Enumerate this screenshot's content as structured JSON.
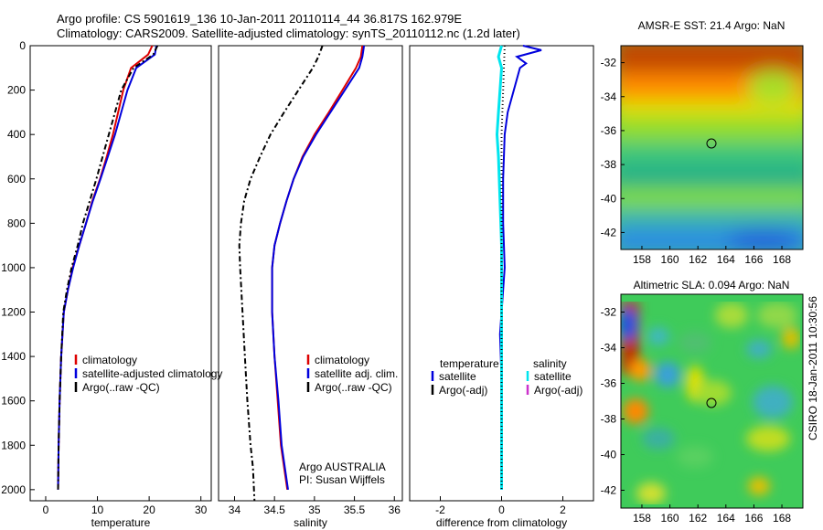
{
  "header": {
    "line1": "Argo profile: CS 5901619_136 10-Jan-2011 20110114_44 36.817S 162.979E",
    "line2": "Climatology: CARS2009. Satellite-adjusted climatology: synTS_20110112.nc (1.2d later)"
  },
  "colors": {
    "red": "#dd0000",
    "blue": "#0000dd",
    "black": "#000000",
    "cyan": "#00e5ee",
    "magenta": "#cc33cc"
  },
  "side_label": "CSIRO 18-Jan-2011 10:30:56",
  "chart_data": [
    {
      "type": "line",
      "xlabel": "temperature",
      "ylabel": "",
      "xlim": [
        -3,
        32
      ],
      "ylim": [
        2050,
        0
      ],
      "xticks": [
        0,
        10,
        20,
        30
      ],
      "yticks": [
        0,
        200,
        400,
        600,
        800,
        1000,
        1200,
        1400,
        1600,
        1800,
        2000
      ],
      "legend": [
        "climatology",
        "satellite-adjusted climatology",
        "Argo(..raw -QC)"
      ],
      "legend_position": "lower-right",
      "series": [
        {
          "name": "climatology",
          "color": "red",
          "dash": "",
          "x": [
            20.6,
            19.8,
            16.5,
            15.0,
            14.0,
            13.0,
            11.8,
            10.5,
            9.0,
            7.8,
            6.5,
            5.2,
            4.3,
            3.5,
            3.0,
            2.7,
            2.5,
            2.4
          ],
          "y": [
            0,
            40,
            100,
            200,
            300,
            400,
            500,
            600,
            700,
            800,
            900,
            1000,
            1100,
            1200,
            1400,
            1600,
            1800,
            2000
          ]
        },
        {
          "name": "satellite-adjusted climatology",
          "color": "blue",
          "dash": "",
          "x": [
            21.4,
            21.1,
            17.5,
            15.8,
            14.6,
            13.4,
            12.0,
            10.6,
            9.1,
            7.8,
            6.5,
            5.3,
            4.3,
            3.5,
            3.0,
            2.7,
            2.5,
            2.4
          ],
          "y": [
            0,
            40,
            100,
            200,
            300,
            400,
            500,
            600,
            700,
            800,
            900,
            1000,
            1100,
            1200,
            1400,
            1600,
            1800,
            2000
          ]
        },
        {
          "name": "Argo(..raw -QC)",
          "color": "black",
          "dash": "6,3,2,3",
          "x": [
            21.6,
            20.8,
            17.0,
            14.6,
            13.4,
            12.2,
            11.0,
            9.8,
            8.5,
            7.2,
            6.2,
            5.0,
            4.1,
            3.4,
            3.0,
            2.7,
            2.5,
            2.4
          ],
          "y": [
            0,
            40,
            100,
            200,
            300,
            400,
            500,
            600,
            700,
            800,
            900,
            1000,
            1100,
            1200,
            1400,
            1600,
            1800,
            2000
          ]
        }
      ]
    },
    {
      "type": "line",
      "xlabel": "salinity",
      "ylabel": "",
      "xlim": [
        33.8,
        36.1
      ],
      "ylim": [
        2050,
        0
      ],
      "xticks": [
        34,
        34.5,
        35,
        35.5,
        36
      ],
      "legend": [
        "climatology",
        "satellite adj. clim.",
        "Argo(..raw -QC)"
      ],
      "legend_position": "lower-right",
      "annotations": [
        "Argo AUSTRALIA",
        "PI: Susan Wijffels"
      ],
      "series": [
        {
          "name": "climatology",
          "color": "red",
          "dash": "",
          "x": [
            35.6,
            35.58,
            35.52,
            35.35,
            35.18,
            35.0,
            34.85,
            34.74,
            34.65,
            34.57,
            34.5,
            34.47,
            34.47,
            34.5,
            34.54,
            34.58,
            34.62,
            34.66
          ],
          "y": [
            0,
            50,
            100,
            200,
            300,
            400,
            500,
            600,
            700,
            800,
            900,
            1000,
            1200,
            1400,
            1600,
            1800,
            1900,
            2000
          ]
        },
        {
          "name": "satellite adj. clim.",
          "color": "blue",
          "dash": "",
          "x": [
            35.62,
            35.6,
            35.56,
            35.38,
            35.2,
            35.02,
            34.86,
            34.74,
            34.65,
            34.57,
            34.5,
            34.47,
            34.47,
            34.5,
            34.55,
            34.59,
            34.63,
            34.67
          ],
          "y": [
            0,
            50,
            100,
            200,
            300,
            400,
            500,
            600,
            700,
            800,
            900,
            1000,
            1200,
            1400,
            1600,
            1800,
            1900,
            2000
          ]
        },
        {
          "name": "Argo(..raw -QC)",
          "color": "black",
          "dash": "6,3,2,3",
          "x": [
            35.1,
            35.05,
            34.98,
            34.8,
            34.62,
            34.45,
            34.32,
            34.2,
            34.12,
            34.08,
            34.06,
            34.07,
            34.1,
            34.13,
            34.16,
            34.2,
            34.23,
            34.25
          ],
          "y": [
            0,
            50,
            100,
            200,
            300,
            400,
            500,
            600,
            700,
            800,
            900,
            1000,
            1200,
            1400,
            1600,
            1800,
            1900,
            2050
          ]
        }
      ]
    },
    {
      "type": "line",
      "xlabel": "difference from climatology",
      "ylabel": "",
      "xlim": [
        -3.0,
        3.0
      ],
      "ylim": [
        2050,
        0
      ],
      "xticks": [
        -2,
        0,
        2
      ],
      "legend_headers": [
        "temperature",
        "salinity"
      ],
      "legend_left": [
        "satellite",
        "Argo(-adj)"
      ],
      "legend_right": [
        "satellite",
        "Argo(-adj)"
      ],
      "legend_position": "lower",
      "series": [
        {
          "name": "temperature satellite",
          "color": "blue",
          "dash": "",
          "x": [
            0.7,
            1.3,
            0.5,
            0.8,
            0.6,
            0.4,
            0.2,
            0.1,
            0.05,
            0.05,
            0.1,
            0.05,
            0.0,
            -0.05,
            0.0,
            0.0,
            0.0,
            0.0
          ],
          "y": [
            0,
            20,
            50,
            80,
            100,
            200,
            300,
            400,
            600,
            800,
            1000,
            1100,
            1200,
            1300,
            1500,
            1700,
            1900,
            2000
          ]
        },
        {
          "name": "salinity satellite",
          "color": "cyan",
          "dash": "",
          "x": [
            0.0,
            -0.1,
            0.0,
            -0.05,
            -0.1,
            -0.15,
            -0.1,
            -0.05,
            0.0,
            0.0,
            0.0,
            0.0,
            0.0
          ],
          "y": [
            0,
            50,
            100,
            200,
            300,
            400,
            500,
            700,
            900,
            1200,
            1500,
            1800,
            2000
          ]
        },
        {
          "name": "temperature Argo(-adj)",
          "color": "black",
          "dash": "1,3",
          "x": [
            0.1,
            0.05,
            0.0,
            0.0,
            0.0,
            0.0,
            0.0,
            0.0
          ],
          "y": [
            0,
            200,
            400,
            600,
            900,
            1200,
            1600,
            2000
          ]
        }
      ]
    },
    {
      "type": "heatmap",
      "title": "AMSR-E SST: 21.4 Argo: NaN",
      "xlim": [
        156.5,
        169.5
      ],
      "ylim": [
        -43,
        -31
      ],
      "xticks": [
        158,
        160,
        162,
        164,
        166,
        168
      ],
      "yticks": [
        -32,
        -34,
        -36,
        -38,
        -40,
        -42
      ],
      "marker": {
        "x": 162.979,
        "y": -36.817
      }
    },
    {
      "type": "heatmap",
      "title": "Altimetric SLA: 0.094 Argo: NaN",
      "xlim": [
        156.5,
        169.5
      ],
      "ylim": [
        -43,
        -31
      ],
      "xticks": [
        158,
        160,
        162,
        164,
        166,
        168
      ],
      "yticks": [
        -32,
        -34,
        -36,
        -38,
        -40,
        -42
      ],
      "marker": {
        "x": 162.979,
        "y": -36.817
      }
    }
  ]
}
